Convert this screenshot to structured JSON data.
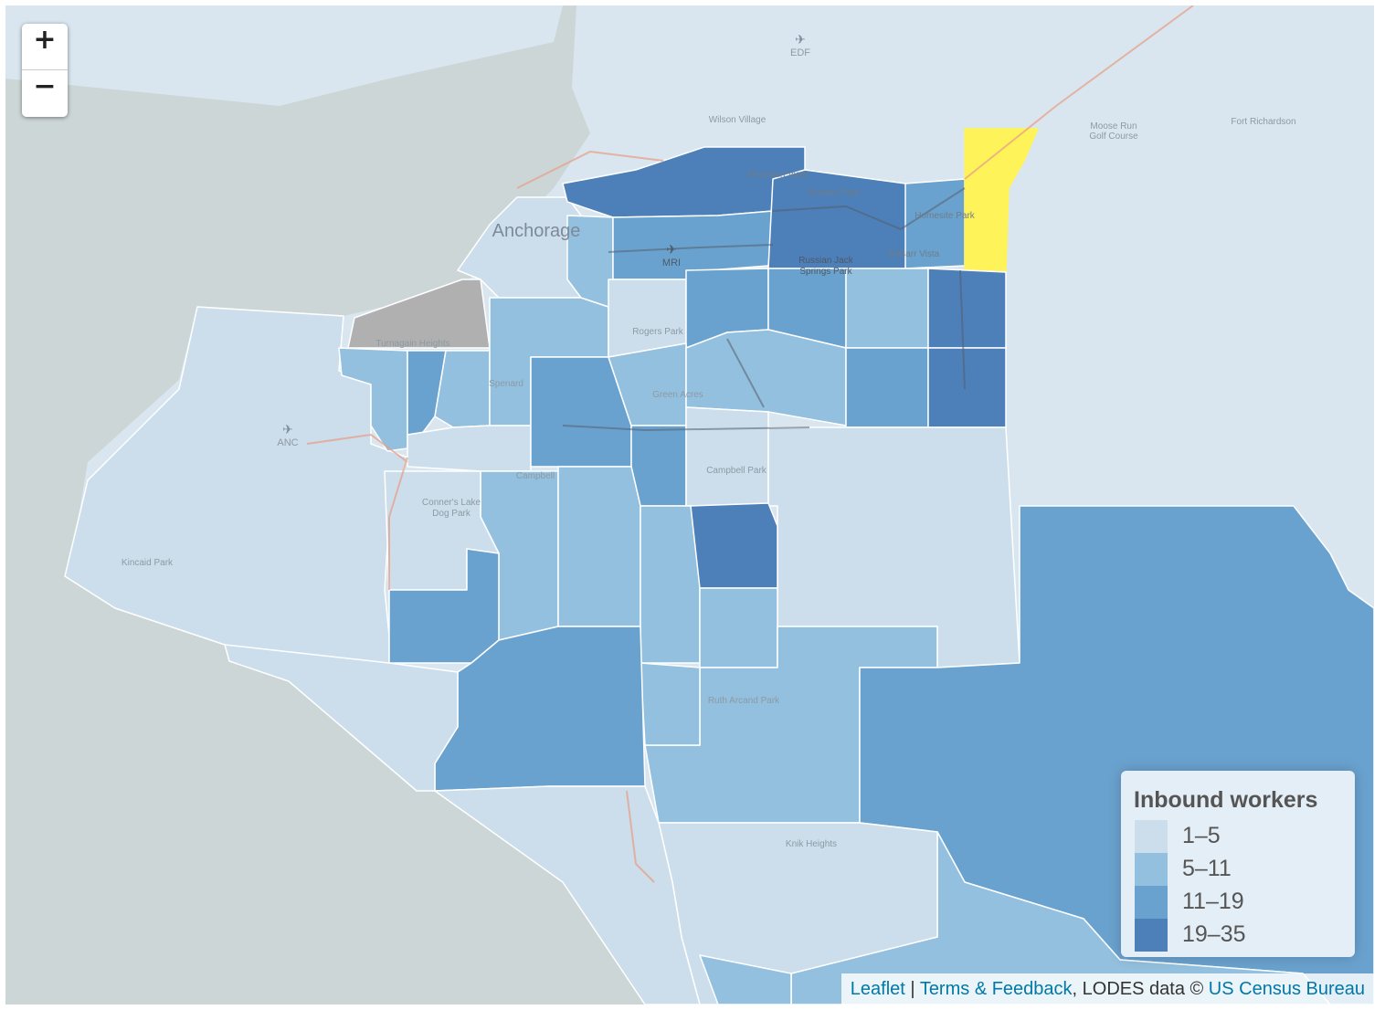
{
  "map": {
    "zoom_in_label": "+",
    "zoom_out_label": "−",
    "place_labels": {
      "edf": "EDF",
      "wilson_village": "Wilson Village",
      "moose_run": "Moose Run",
      "golf_course": "Golf Course",
      "fort_richardson": "Fort Richardson",
      "mountain_view": "Mountain View",
      "wonder_park": "Wonder Park",
      "homesite_park": "Homesite Park",
      "anchorage": "Anchorage",
      "mri": "MRI",
      "russian_jack": "Russian Jack",
      "springs_park": "Springs Park",
      "debarr_vista": "DeBarr Vista",
      "turnagain_heights": "Turnagain Heights",
      "rogers_park": "Rogers Park",
      "spenard": "Spenard",
      "green_acres": "Green Acres",
      "anc": "ANC",
      "campbell_park": "Campbell Park",
      "campbell": "Campbell",
      "conners_lake": "Conner's Lake",
      "dog_park": "Dog Park",
      "kincaid_park": "Kincaid Park",
      "ruth_arcand_park": "Ruth Arcand Park",
      "knik_heights": "Knik Heights"
    }
  },
  "legend": {
    "title": "Inbound workers",
    "items": [
      {
        "label": "1–5",
        "color": "#ccdeec"
      },
      {
        "label": "5–11",
        "color": "#93c0df"
      },
      {
        "label": "11–19",
        "color": "#6aa2cf"
      },
      {
        "label": "19–35",
        "color": "#4d7fb9"
      }
    ]
  },
  "colors": {
    "selected": "#fff35a",
    "no_data": "#b0b0b0",
    "water": "#cdd6d6",
    "land": "#d9e6ef"
  },
  "attribution": {
    "leaflet": "Leaflet",
    "sep1": " | ",
    "terms": "Terms & Feedback",
    "data_text": ", LODES data © ",
    "census": "US Census Bureau"
  }
}
